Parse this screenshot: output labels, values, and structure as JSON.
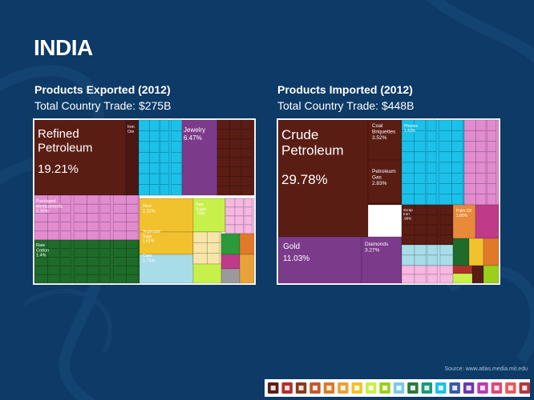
{
  "title": "INDIA",
  "source": "Source: www.atlas.media.mit.edu",
  "chart_data": [
    {
      "type": "treemap",
      "title": "Products Exported (2012)",
      "subtitle": "Total Country Trade: $275B",
      "labeled": [
        {
          "name": "Refined Petroleum",
          "pct": "19.21%",
          "color": "#5a1d14"
        },
        {
          "name": "Jewelry",
          "pct": "6.47%",
          "color": "#7c3a8a"
        },
        {
          "name": "Iron Ore",
          "pct": "",
          "color": "#5a1d14"
        },
        {
          "name": "Packaged Medicaments",
          "pct": "2.35%",
          "color": "#e28cd0"
        },
        {
          "name": "Raw Cotton",
          "pct": "1.4%",
          "color": "#1f6b2a"
        },
        {
          "name": "Rice",
          "pct": "2.22%",
          "color": "#f2c12e"
        },
        {
          "name": "Raw Sugar",
          "pct": ".79%",
          "color": "#c8f04a"
        },
        {
          "name": "Vegetable Saps",
          "pct": "1.61%",
          "color": "#f2c12e"
        },
        {
          "name": "Cars",
          "pct": "1.75%",
          "color": "#a8dce8"
        }
      ]
    },
    {
      "type": "treemap",
      "title": "Products Imported (2012)",
      "subtitle": "Total Country Trade: $448B",
      "labeled": [
        {
          "name": "Crude Petroleum",
          "pct": "29.78%",
          "color": "#5a1d14"
        },
        {
          "name": "Coal Briquettes",
          "pct": "3.52%",
          "color": "#5a1d14"
        },
        {
          "name": "Petroleum Gas",
          "pct": "2.83%",
          "color": "#5a1d14"
        },
        {
          "name": "Phones",
          "pct": "1.43%",
          "color": "#1cc1ea"
        },
        {
          "name": "Gold",
          "pct": "11.03%",
          "color": "#7c3a8a"
        },
        {
          "name": "Diamonds",
          "pct": "3.27%",
          "color": "#7c3a8a"
        },
        {
          "name": "Scrap Iron",
          "pct": ".99%",
          "color": "#5a1d14"
        },
        {
          "name": "Palm Oil",
          "pct": "1.85%",
          "color": "#e88a3a"
        }
      ]
    }
  ],
  "legend_colors": [
    "#5a1d14",
    "#b0302a",
    "#8a3b1a",
    "#c4572a",
    "#d97a2a",
    "#e8a23a",
    "#f2c12e",
    "#c8f04a",
    "#9ad01a",
    "#7ec8e8",
    "#2a7a3a",
    "#1a9a7a",
    "#1cc1ea",
    "#3a5aa8",
    "#6a3aa8",
    "#c03ab0",
    "#d94a7a",
    "#e85a5a",
    "#b03a3a"
  ],
  "legend_icons": [
    "animal-icon",
    "meat-icon",
    "vegetable-icon",
    "fat-icon",
    "food-icon",
    "mineral-icon",
    "chemical-icon",
    "plastic-icon",
    "leather-icon",
    "wood-icon",
    "paper-icon",
    "textile-icon",
    "footwear-icon",
    "stone-icon",
    "precious-icon",
    "metal-icon",
    "machine-icon",
    "transport-icon",
    "misc-icon"
  ]
}
